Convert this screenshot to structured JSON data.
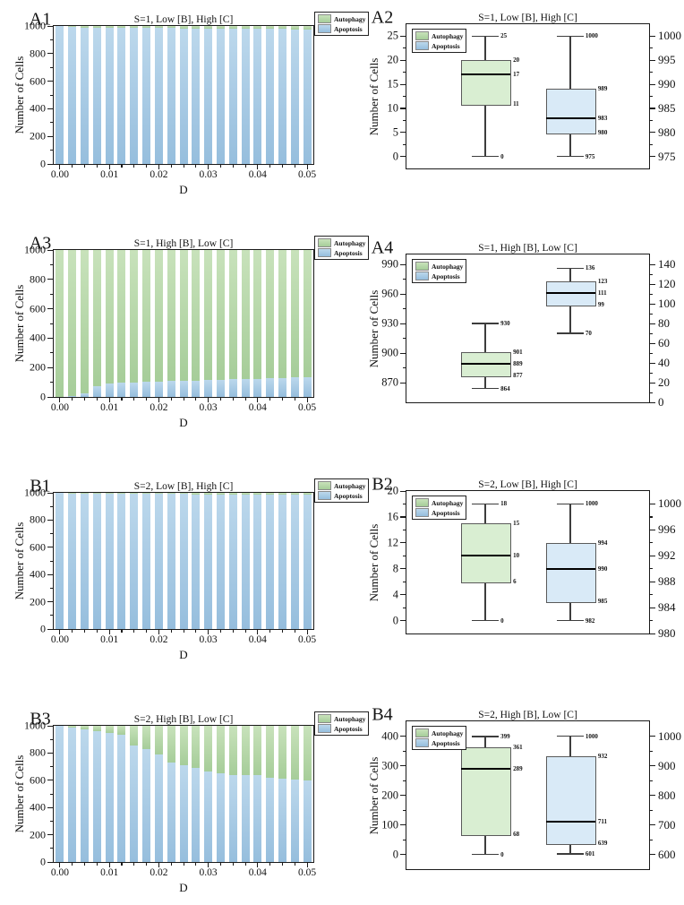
{
  "legend_labels": {
    "autophagy": "Autophagy",
    "apoptosis": "Apoptosis"
  },
  "colors": {
    "bar_apoptosis_top": "#bcd8ec",
    "bar_apoptosis_bottom": "#96bedd",
    "bar_autophagy_top": "#c8e2bb",
    "bar_autophagy_bottom": "#a6cd99",
    "box_autophagy_fill": "#d9eed2",
    "box_apoptosis_fill": "#d9eaf7",
    "frame": "#1a1a1a",
    "tick": "#1a1a1a",
    "whisker": "#3d3d3d",
    "median": "#000000"
  },
  "chart_data": [
    {
      "id": "A1",
      "type": "bar",
      "panel_label": "A1",
      "title": "S=1, Low [B], High [C]",
      "xlabel": "D",
      "ylabel": "Number of Cells",
      "total": 1000,
      "x_values": [
        0,
        0.0025,
        0.005,
        0.0075,
        0.01,
        0.0125,
        0.015,
        0.0175,
        0.02,
        0.0225,
        0.025,
        0.0275,
        0.03,
        0.0325,
        0.035,
        0.0375,
        0.04,
        0.0425,
        0.045,
        0.0475,
        0.05
      ],
      "x_tick_labels": [
        "0.00",
        "0.01",
        "0.02",
        "0.03",
        "0.04",
        "0.05"
      ],
      "y_ticks": [
        0,
        200,
        400,
        600,
        800,
        1000
      ],
      "ylim": [
        0,
        1000
      ],
      "series": [
        {
          "name": "Apoptosis",
          "values": [
            1000,
            991,
            989,
            988,
            987,
            986,
            985,
            985,
            984,
            984,
            983,
            983,
            982,
            982,
            981,
            981,
            980,
            979,
            978,
            977,
            976
          ]
        },
        {
          "name": "Autophagy",
          "values": [
            0,
            9,
            11,
            12,
            13,
            14,
            15,
            15,
            16,
            16,
            17,
            17,
            18,
            18,
            19,
            19,
            20,
            21,
            22,
            23,
            24
          ]
        }
      ],
      "legend": [
        "Autophagy",
        "Apoptosis"
      ],
      "legend_position": "outside-top-right"
    },
    {
      "id": "A2",
      "type": "box",
      "panel_label": "A2",
      "title": "S=1, Low [B], High [C]",
      "ylabel": "Number of Cells",
      "left_axis": {
        "ticks": [
          0,
          5,
          10,
          15,
          20,
          25
        ],
        "range": [
          -2.5,
          27.5
        ]
      },
      "right_axis": {
        "ticks": [
          975,
          980,
          985,
          990,
          995,
          1000
        ],
        "range": [
          972.5,
          1002.5
        ]
      },
      "series": [
        {
          "name": "Autophagy",
          "axis": "left",
          "center_frac": 0.325,
          "min": 0,
          "q1": 11,
          "median": 17,
          "q3": 20,
          "max": 25,
          "labels": [
            "25",
            "20",
            "17",
            "11",
            "0"
          ]
        },
        {
          "name": "Apoptosis",
          "axis": "right",
          "center_frac": 0.675,
          "min": 975,
          "q1": 980,
          "median": 983,
          "q3": 989,
          "max": 1000,
          "labels": [
            "1000",
            "989",
            "983",
            "980",
            "975"
          ]
        }
      ],
      "legend": [
        "Autophagy",
        "Apoptosis"
      ],
      "legend_position": "inside-top-left"
    },
    {
      "id": "A3",
      "type": "bar",
      "panel_label": "A3",
      "title": "S=1, High [B], Low [C]",
      "xlabel": "D",
      "ylabel": "Number of Cells",
      "total": 1000,
      "x_values": [
        0,
        0.0025,
        0.005,
        0.0075,
        0.01,
        0.0125,
        0.015,
        0.0175,
        0.02,
        0.0225,
        0.025,
        0.0275,
        0.03,
        0.0325,
        0.035,
        0.0375,
        0.04,
        0.0425,
        0.045,
        0.0475,
        0.05
      ],
      "x_tick_labels": [
        "0.00",
        "0.01",
        "0.02",
        "0.03",
        "0.04",
        "0.05"
      ],
      "y_ticks": [
        0,
        200,
        400,
        600,
        800,
        1000
      ],
      "ylim": [
        0,
        1000
      ],
      "series": [
        {
          "name": "Apoptosis",
          "values": [
            0,
            5,
            27,
            75,
            93,
            98,
            100,
            104,
            105,
            107,
            110,
            111,
            113,
            116,
            119,
            122,
            125,
            127,
            129,
            132,
            135
          ]
        },
        {
          "name": "Autophagy",
          "values": [
            1000,
            995,
            973,
            925,
            907,
            902,
            900,
            896,
            895,
            893,
            890,
            889,
            887,
            884,
            881,
            878,
            875,
            873,
            871,
            868,
            865
          ]
        }
      ],
      "legend": [
        "Autophagy",
        "Apoptosis"
      ],
      "legend_position": "outside-top-right"
    },
    {
      "id": "A4",
      "type": "box",
      "panel_label": "A4",
      "title": "S=1, High [B], Low [C]",
      "ylabel": "Number of Cells",
      "left_axis": {
        "ticks": [
          870,
          900,
          930,
          960,
          990
        ],
        "range": [
          850,
          1000
        ]
      },
      "right_axis": {
        "ticks": [
          0,
          20,
          40,
          60,
          80,
          100,
          120,
          140
        ],
        "range": [
          0,
          150
        ]
      },
      "series": [
        {
          "name": "Autophagy",
          "axis": "left",
          "center_frac": 0.325,
          "min": 864,
          "q1": 877,
          "median": 889,
          "q3": 901,
          "max": 930,
          "labels": [
            "930",
            "901",
            "889",
            "877",
            "864"
          ]
        },
        {
          "name": "Apoptosis",
          "axis": "right",
          "center_frac": 0.675,
          "min": 70,
          "q1": 99,
          "median": 111,
          "q3": 123,
          "max": 136,
          "labels": [
            "136",
            "123",
            "111",
            "99",
            "70"
          ]
        }
      ],
      "legend": [
        "Autophagy",
        "Apoptosis"
      ],
      "legend_position": "inside-top-left"
    },
    {
      "id": "B1",
      "type": "bar",
      "panel_label": "B1",
      "title": "S=2, Low [B], High [C]",
      "xlabel": "D",
      "ylabel": "Number of Cells",
      "total": 1000,
      "x_values": [
        0,
        0.0025,
        0.005,
        0.0075,
        0.01,
        0.0125,
        0.015,
        0.0175,
        0.02,
        0.0225,
        0.025,
        0.0275,
        0.03,
        0.0325,
        0.035,
        0.0375,
        0.04,
        0.0425,
        0.045,
        0.0475,
        0.05
      ],
      "x_tick_labels": [
        "0.00",
        "0.01",
        "0.02",
        "0.03",
        "0.04",
        "0.05"
      ],
      "y_ticks": [
        0,
        200,
        400,
        600,
        800,
        1000
      ],
      "ylim": [
        0,
        1000
      ],
      "series": [
        {
          "name": "Apoptosis",
          "values": [
            1000,
            996,
            995,
            994,
            993,
            993,
            992,
            992,
            991,
            991,
            991,
            990,
            990,
            990,
            989,
            989,
            989,
            988,
            988,
            988,
            987
          ]
        },
        {
          "name": "Autophagy",
          "values": [
            0,
            4,
            5,
            6,
            7,
            7,
            8,
            8,
            9,
            9,
            9,
            10,
            10,
            10,
            11,
            11,
            11,
            12,
            12,
            12,
            13
          ]
        }
      ],
      "legend": [
        "Autophagy",
        "Apoptosis"
      ],
      "legend_position": "outside-top-right"
    },
    {
      "id": "B2",
      "type": "box",
      "panel_label": "B2",
      "title": "S=2, Low [B], High [C]",
      "ylabel": "Number of Cells",
      "left_axis": {
        "ticks": [
          0,
          4,
          8,
          12,
          16,
          20
        ],
        "range": [
          -2,
          20
        ]
      },
      "right_axis": {
        "ticks": [
          980,
          984,
          988,
          992,
          996,
          1000
        ],
        "range": [
          980,
          1002
        ]
      },
      "series": [
        {
          "name": "Autophagy",
          "axis": "left",
          "center_frac": 0.325,
          "min": 0,
          "q1": 6,
          "median": 10,
          "q3": 15,
          "max": 18,
          "labels": [
            "18",
            "15",
            "10",
            "6",
            "0"
          ]
        },
        {
          "name": "Apoptosis",
          "axis": "right",
          "center_frac": 0.675,
          "min": 982,
          "q1": 985,
          "median": 990,
          "q3": 994,
          "max": 1000,
          "labels": [
            "1000",
            "994",
            "990",
            "985",
            "982"
          ]
        }
      ],
      "legend": [
        "Autophagy",
        "Apoptosis"
      ],
      "legend_position": "inside-top-left"
    },
    {
      "id": "B3",
      "type": "bar",
      "panel_label": "B3",
      "title": "S=2, High [B], Low [C]",
      "xlabel": "D",
      "ylabel": "Number of Cells",
      "total": 1000,
      "x_values": [
        0,
        0.0025,
        0.005,
        0.0075,
        0.01,
        0.0125,
        0.015,
        0.0175,
        0.02,
        0.0225,
        0.025,
        0.0275,
        0.03,
        0.0325,
        0.035,
        0.0375,
        0.04,
        0.0425,
        0.045,
        0.0475,
        0.05
      ],
      "x_tick_labels": [
        "0.00",
        "0.01",
        "0.02",
        "0.03",
        "0.04",
        "0.05"
      ],
      "y_ticks": [
        0,
        200,
        400,
        600,
        800,
        1000
      ],
      "ylim": [
        0,
        1000
      ],
      "series": [
        {
          "name": "Apoptosis",
          "values": [
            1000,
            985,
            971,
            960,
            947,
            932,
            856,
            828,
            790,
            731,
            712,
            689,
            665,
            651,
            641,
            638,
            640,
            621,
            615,
            608,
            601
          ]
        },
        {
          "name": "Autophagy",
          "values": [
            0,
            15,
            29,
            40,
            53,
            68,
            144,
            172,
            210,
            269,
            288,
            311,
            335,
            349,
            359,
            362,
            360,
            379,
            385,
            392,
            399
          ]
        }
      ],
      "legend": [
        "Autophagy",
        "Apoptosis"
      ],
      "legend_position": "outside-top-right"
    },
    {
      "id": "B4",
      "type": "box",
      "panel_label": "B4",
      "title": "S=2, High [B], Low [C]",
      "ylabel": "Number of Cells",
      "left_axis": {
        "ticks": [
          0,
          100,
          200,
          300,
          400
        ],
        "range": [
          -50,
          450
        ]
      },
      "right_axis": {
        "ticks": [
          600,
          700,
          800,
          900,
          1000
        ],
        "range": [
          550,
          1050
        ]
      },
      "series": [
        {
          "name": "Autophagy",
          "axis": "left",
          "center_frac": 0.325,
          "min": 0,
          "q1": 68,
          "median": 289,
          "q3": 361,
          "max": 399,
          "labels": [
            "399",
            "361",
            "289",
            "68",
            "0"
          ]
        },
        {
          "name": "Apoptosis",
          "axis": "right",
          "center_frac": 0.675,
          "min": 601,
          "q1": 639,
          "median": 711,
          "q3": 932,
          "max": 1000,
          "labels": [
            "1000",
            "932",
            "711",
            "639",
            "601"
          ]
        }
      ],
      "legend": [
        "Autophagy",
        "Apoptosis"
      ],
      "legend_position": "inside-top-left"
    }
  ]
}
